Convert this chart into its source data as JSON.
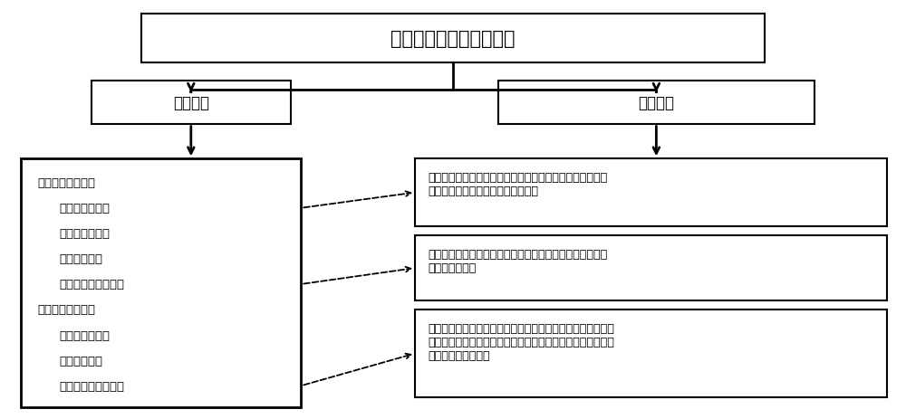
{
  "title": "管内两相换热区饱和压力",
  "box_left_level2": "影响变量",
  "box_right_level2": "调节方法",
  "left_box_lines": [
    {
      "text": "正相关影响变量：",
      "bold": true,
      "indent": false
    },
    {
      "text": "第一膨胀阀开度",
      "bold": false,
      "indent": true,
      "arrow_to": 0
    },
    {
      "text": "工质泵运转频率",
      "bold": false,
      "indent": true
    },
    {
      "text": "预热器加热量",
      "bold": false,
      "indent": true
    },
    {
      "text": "第一储液器饱和压力",
      "bold": false,
      "indent": true,
      "arrow_to": 1
    },
    {
      "text": "负相关影响变量：",
      "bold": true,
      "indent": false
    },
    {
      "text": "第二膨胀阀开度",
      "bold": false,
      "indent": true
    },
    {
      "text": "冷凝器冷凝量",
      "bold": false,
      "indent": true
    },
    {
      "text": "第一储液器工质储量",
      "bold": false,
      "indent": true,
      "arrow_to": 2
    }
  ],
  "right_box_texts": [
    "通过减小第一膨胀阀开度降低预热器进口处工质压力，并确\n保工质在预热器进口处为过冷状态。",
    "通过增大载冷剂流量、降低载冷剂进口温度以降低第一储液\n器内饱和压力。",
    "通过调节第一球阀的启闭对第一储液器内工质进行迁移、调节\n第二球阀的启闭对第一储液器进行工质充注，进而改变第一储\n液器内工质储存量。"
  ],
  "bg_color": "#ffffff",
  "box_line_color": "#000000",
  "text_color": "#000000",
  "arrow_color": "#000000"
}
